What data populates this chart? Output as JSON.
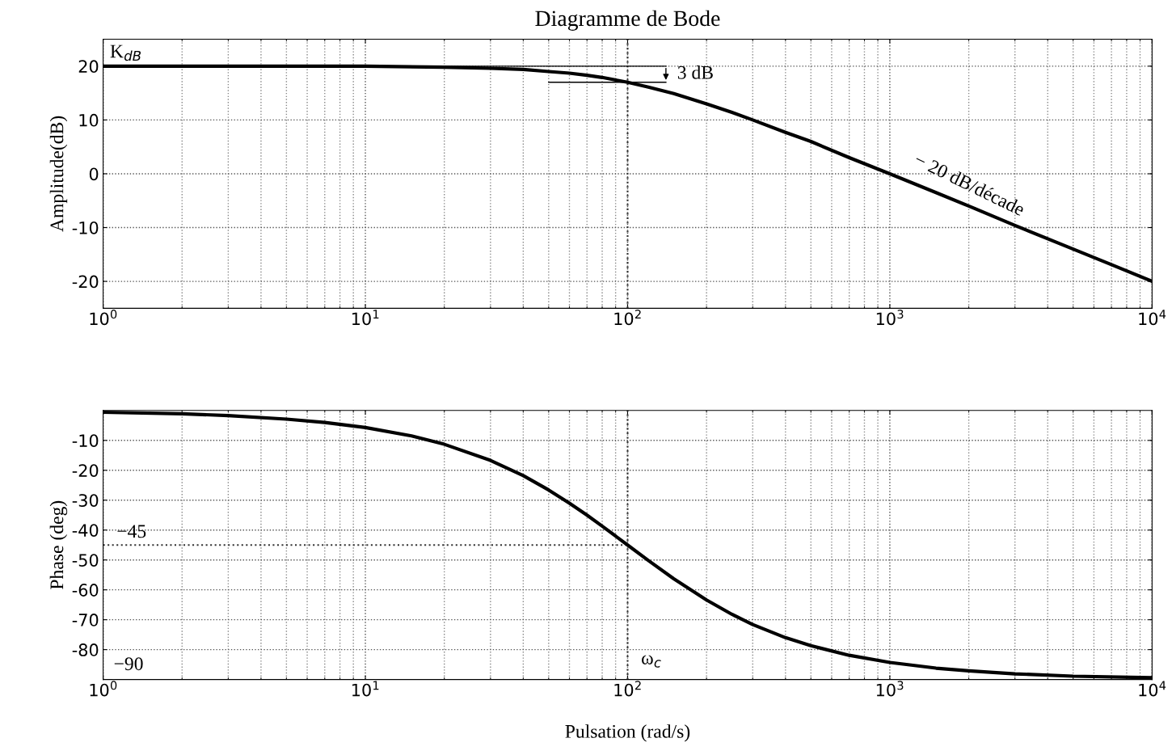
{
  "chart_data": [
    {
      "type": "line",
      "title": "Diagramme de Bode",
      "ylabel": "Amplitude(dB)",
      "x": [
        1,
        3,
        10,
        20,
        30,
        40,
        50,
        60,
        70,
        80,
        100,
        120,
        150,
        200,
        250,
        300,
        400,
        500,
        700,
        1000,
        1500,
        2000,
        3000,
        5000,
        7000,
        10000
      ],
      "series": [
        {
          "color": "#000000",
          "values": [
            20.0,
            20.0,
            20.0,
            19.8,
            19.6,
            19.4,
            19.0,
            18.7,
            18.3,
            17.9,
            17.0,
            16.1,
            14.9,
            13.0,
            11.4,
            10.0,
            7.7,
            6.0,
            3.0,
            0.0,
            -3.5,
            -6.0,
            -9.6,
            -14.0,
            -16.9,
            -20.0
          ]
        }
      ],
      "xlim": [
        1,
        10000
      ],
      "xticks": [
        {
          "value": 1,
          "label": "10$^{0}$"
        },
        {
          "value": 10,
          "label": "10$^{1}$"
        },
        {
          "value": 100,
          "label": "10$^{2}$"
        },
        {
          "value": 1000,
          "label": "10$^{3}$"
        },
        {
          "value": 10000,
          "label": "10$^{4}$"
        }
      ],
      "ylim": [
        -25,
        25
      ],
      "yticks": [
        -20,
        -10,
        0,
        10,
        20
      ],
      "log": "x",
      "grid": true,
      "legend": false,
      "line_style": "solid",
      "marker": "none",
      "ref_lines": [
        {
          "axis": "x",
          "value": 100,
          "line_style": "dotted"
        }
      ],
      "annotations": [
        {
          "text": "K$_{dB}$",
          "x": 1,
          "y": 20
        },
        {
          "text": "3 dB",
          "x": 100,
          "y": 17
        },
        {
          "text": "− 20 dB/décade",
          "x": 2000,
          "y": -6
        }
      ]
    },
    {
      "type": "line",
      "ylabel": "Phase (deg)",
      "xlabel": "Pulsation (rad/s)",
      "x": [
        1,
        2,
        3,
        5,
        7,
        10,
        15,
        20,
        30,
        40,
        50,
        60,
        70,
        80,
        100,
        120,
        150,
        200,
        250,
        300,
        400,
        500,
        700,
        1000,
        1500,
        2000,
        3000,
        5000,
        10000
      ],
      "series": [
        {
          "color": "#000000",
          "values": [
            -0.6,
            -1.1,
            -1.7,
            -2.9,
            -4.0,
            -5.7,
            -8.5,
            -11.3,
            -16.7,
            -21.8,
            -26.6,
            -31.0,
            -35.0,
            -38.7,
            -45.0,
            -50.2,
            -56.3,
            -63.4,
            -68.2,
            -71.6,
            -76.0,
            -78.7,
            -81.9,
            -84.3,
            -86.2,
            -87.1,
            -88.1,
            -88.9,
            -89.4
          ]
        }
      ],
      "xlim": [
        1,
        10000
      ],
      "xticks": [
        {
          "value": 1,
          "label": "10$^{0}$"
        },
        {
          "value": 10,
          "label": "10$^{1}$"
        },
        {
          "value": 100,
          "label": "10$^{2}$"
        },
        {
          "value": 1000,
          "label": "10$^{3}$"
        },
        {
          "value": 10000,
          "label": "10$^{4}$"
        }
      ],
      "ylim": [
        -90,
        0
      ],
      "yticks": [
        -80,
        -70,
        -60,
        -50,
        -40,
        -30,
        -20,
        -10
      ],
      "log": "x",
      "grid": true,
      "legend": false,
      "line_style": "solid",
      "marker": "none",
      "ref_lines": [
        {
          "axis": "x",
          "value": 100,
          "line_style": "dotted"
        },
        {
          "axis": "y",
          "value": -45,
          "line_style": "dotted"
        }
      ],
      "annotations": [
        {
          "text": "−45",
          "x": 1,
          "y": -45
        },
        "−90",
        {
          "text": "ω$_{c}$",
          "x": 100,
          "y": -90
        }
      ]
    }
  ]
}
